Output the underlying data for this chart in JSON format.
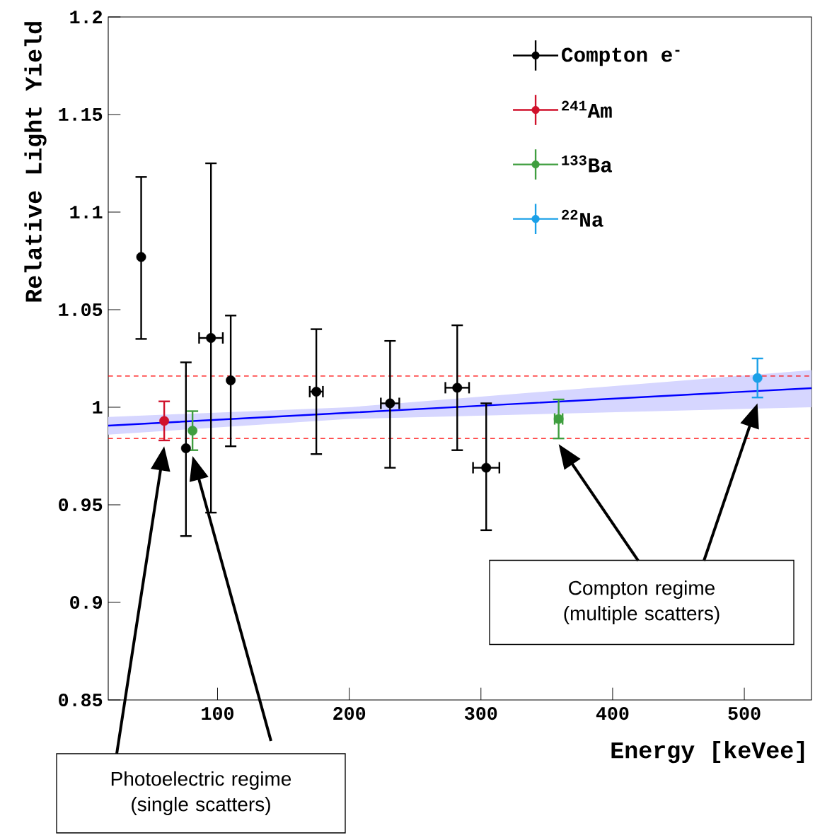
{
  "chart_data": {
    "type": "scatter",
    "xlabel": "Energy [keVee]",
    "ylabel": "Relative Light Yield",
    "xlim": [
      17,
      551
    ],
    "ylim": [
      0.85,
      1.2
    ],
    "xticks": [
      100,
      200,
      300,
      400,
      500
    ],
    "yticks": [
      {
        "value": 0.85,
        "label": "0.85"
      },
      {
        "value": 0.9,
        "label": "0.9"
      },
      {
        "value": 0.95,
        "label": "0.95"
      },
      {
        "value": 1,
        "label": "1"
      },
      {
        "value": 1.05,
        "label": "1.05"
      },
      {
        "value": 1.1,
        "label": "1.1"
      },
      {
        "value": 1.15,
        "label": "1.15"
      },
      {
        "value": 1.2,
        "label": "1.2"
      }
    ],
    "marker": "circle",
    "legend": "top right",
    "series": [
      {
        "type": "line",
        "marker": "none",
        "color": "#0000ff",
        "x": [
          17,
          200,
          551
        ],
        "values": [
          0.9906,
          0.9972,
          1.0098
        ],
        "lower": [
          0.986,
          0.994,
          1.0
        ],
        "upper": [
          0.995,
          1.0,
          1.019
        ]
      },
      {
        "name": "Compton e$^{-}$",
        "color": "#000000",
        "x": [
          42,
          76,
          95,
          110,
          175,
          231,
          282,
          304
        ],
        "values": [
          1.077,
          0.979,
          1.0355,
          1.0138,
          1.008,
          1.002,
          1.01,
          0.969
        ],
        "errors": [
          [
            1.035,
            1.118
          ],
          [
            0.934,
            1.023
          ],
          [
            0.946,
            1.125
          ],
          [
            0.98,
            1.047
          ],
          [
            0.976,
            1.04
          ],
          [
            0.969,
            1.034
          ],
          [
            0.978,
            1.042
          ],
          [
            0.937,
            1.002
          ]
        ],
        "xerrors": [
          null,
          null,
          9,
          null,
          5,
          7,
          9,
          10
        ]
      },
      {
        "name": "$^{241}$Am",
        "color": "#d0112b",
        "x": [
          59.5
        ],
        "values": [
          0.993
        ],
        "errors": [
          [
            0.983,
            1.003
          ]
        ]
      },
      {
        "name": "$^{133}$Ba",
        "color": "#3f9e3f",
        "x": [
          81,
          359
        ],
        "values": [
          0.988,
          0.994
        ],
        "errors": [
          [
            0.978,
            0.998
          ],
          [
            0.984,
            1.004
          ]
        ],
        "xerrors": [
          null,
          3
        ]
      },
      {
        "name": "$^{22}$Na",
        "color": "#1aa0e8",
        "x": [
          510
        ],
        "values": [
          1.015
        ],
        "errors": [
          [
            1.005,
            1.025
          ]
        ]
      }
    ],
    "ref_lines": [
      {
        "axis": "y",
        "value": 1.016,
        "color": "#ff0000",
        "line_style": "dashed"
      },
      {
        "axis": "y",
        "value": 0.984,
        "color": "#ff0000",
        "line_style": "dashed"
      }
    ],
    "annotations": [
      "Photoelectric regime (single scatters)",
      "Compton regime (multiple scatters)"
    ]
  }
}
